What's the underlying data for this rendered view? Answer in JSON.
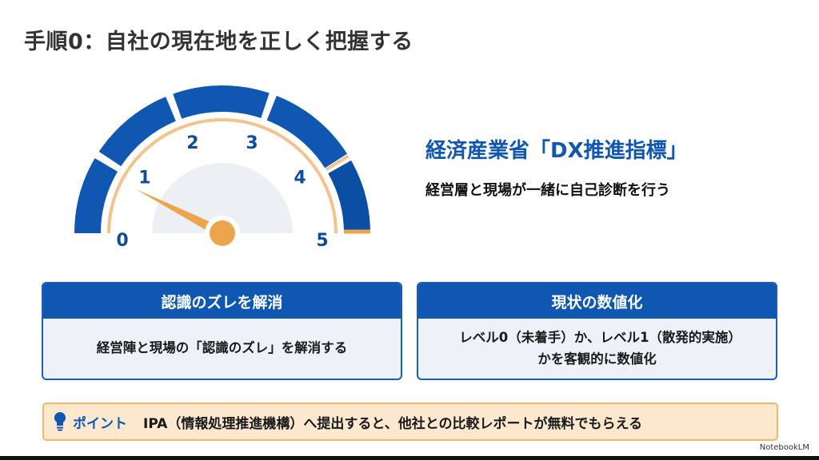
{
  "title": "手順0：自社の現在地を正しく把握する",
  "gauge": {
    "ticks": [
      "0",
      "1",
      "2",
      "3",
      "4",
      "5"
    ],
    "level": 0.75,
    "colors": {
      "segment": "#0f57b0",
      "arc": "#f2c48c",
      "needle": "#eda54b",
      "hub_bg": "#eceff3"
    }
  },
  "headline": "経済産業省「DX推進指標」",
  "subline": "経営層と現場が一緒に自己診断を行う",
  "cards": [
    {
      "title": "認識のズレを解消",
      "body": "経営陣と現場の「認識のズレ」を解消する"
    },
    {
      "title": "現状の数値化",
      "body": "レベル0（未着手）か、レベル1（散発的実施）かを客観的に数値化"
    }
  ],
  "point": {
    "icon": "lightbulb-icon",
    "label": "ポイント",
    "text": "IPA（情報処理推進機構）へ提出すると、他社との比較レポートが無料でもらえる"
  },
  "brand": "NotebookLM"
}
